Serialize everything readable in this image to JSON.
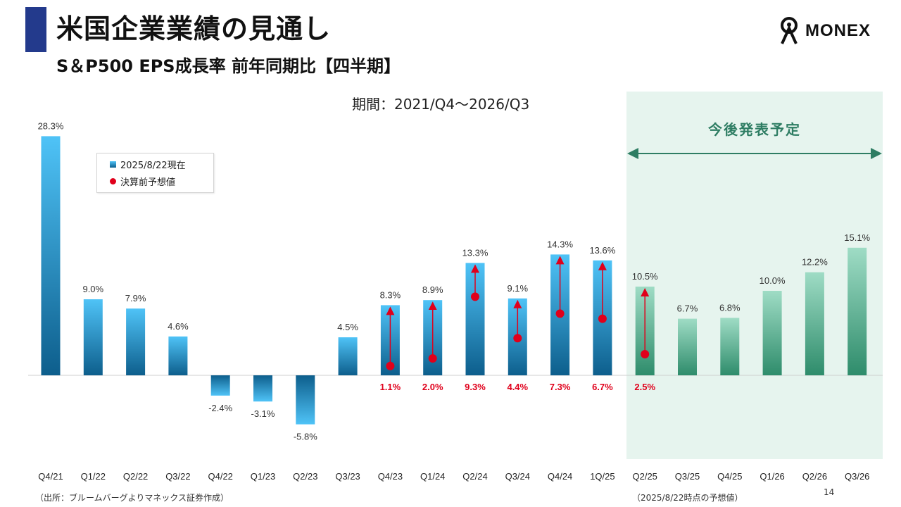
{
  "header": {
    "title": "米国企業業績の見通し",
    "subtitle": "S＆P500 EPS成長率 前年同期比【四半期】",
    "period": "期間：2021/Q4～2026/Q3",
    "logo_text": "MONEX"
  },
  "forecast_region": {
    "label": "今後発表予定"
  },
  "legend": {
    "bar_label": "2025/8/22現在",
    "dot_label": "決算前予想値"
  },
  "footer": {
    "source": "（出所：ブルームバーグよりマネックス証券作成）",
    "forecast_note": "（2025/8/22時点の予想値）",
    "page": "14"
  },
  "colors": {
    "actual_bar_top": "#4fc3f7",
    "actual_bar_bottom": "#0d5e8c",
    "forecast_bar_top": "#9fdcc5",
    "forecast_bar_bottom": "#2e8c6b",
    "forecast_bg": "#e6f4ee",
    "estimate_dot": "#e0001b"
  },
  "chart_data": {
    "type": "bar",
    "ylim": [
      -9,
      30
    ],
    "categories": [
      "Q4/21",
      "Q1/22",
      "Q2/22",
      "Q3/22",
      "Q4/22",
      "Q1/23",
      "Q2/23",
      "Q3/23",
      "Q4/23",
      "Q1/24",
      "Q2/24",
      "Q3/24",
      "Q4/24",
      "1Q/25",
      "Q2/25",
      "Q3/25",
      "Q4/25",
      "Q1/26",
      "Q2/26",
      "Q3/26"
    ],
    "series": [
      {
        "name": "2025/8/22現在",
        "values": [
          28.3,
          9.0,
          7.9,
          4.6,
          -2.4,
          -3.1,
          -5.8,
          4.5,
          8.3,
          8.9,
          13.3,
          9.1,
          14.3,
          13.6,
          10.5,
          6.7,
          6.8,
          10.0,
          12.2,
          15.1
        ]
      },
      {
        "name": "決算前予想値",
        "values": [
          null,
          null,
          null,
          null,
          null,
          null,
          null,
          null,
          1.1,
          2.0,
          9.3,
          4.4,
          7.3,
          6.7,
          2.5,
          null,
          null,
          null,
          null,
          null
        ]
      }
    ],
    "value_labels": [
      "28.3%",
      "9.0%",
      "7.9%",
      "4.6%",
      "-2.4%",
      "-3.1%",
      "-5.8%",
      "4.5%",
      "8.3%",
      "8.9%",
      "13.3%",
      "9.1%",
      "14.3%",
      "13.6%",
      "10.5%",
      "6.7%",
      "6.8%",
      "10.0%",
      "12.2%",
      "15.1%"
    ],
    "estimate_labels": [
      null,
      null,
      null,
      null,
      null,
      null,
      null,
      null,
      "1.1%",
      "2.0%",
      "9.3%",
      "4.4%",
      "7.3%",
      "6.7%",
      "2.5%",
      null,
      null,
      null,
      null,
      null
    ],
    "forecast_start_index": 14,
    "grid": false
  }
}
